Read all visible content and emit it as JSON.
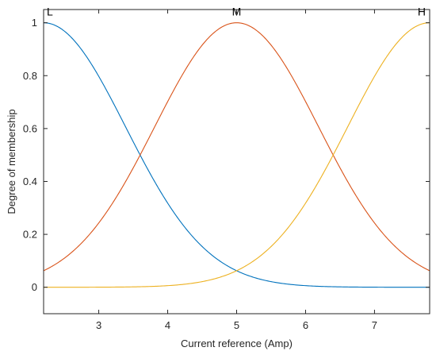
{
  "chart_data": {
    "type": "line",
    "title": "",
    "xlabel": "Current reference (Amp)",
    "ylabel": "Degree of membership",
    "xlim": [
      2.2,
      7.8
    ],
    "ylim": [
      -0.1,
      1.05
    ],
    "xticks": [
      3,
      4,
      5,
      6,
      7
    ],
    "yticks": [
      0,
      0.2,
      0.4,
      0.6,
      0.8,
      1
    ],
    "ytick_labels": [
      "0",
      "0.2",
      "0.4",
      "0.6",
      "0.8",
      "1"
    ],
    "grid": false,
    "legend": "none",
    "series": [
      {
        "name": "L",
        "function": "gaussian",
        "center": 2.2,
        "sigma": 1.189,
        "color": "#0072BD"
      },
      {
        "name": "M",
        "function": "gaussian",
        "center": 5.0,
        "sigma": 1.189,
        "color": "#D95319"
      },
      {
        "name": "H",
        "function": "gaussian",
        "center": 7.8,
        "sigma": 1.189,
        "color": "#EDB120"
      }
    ]
  }
}
